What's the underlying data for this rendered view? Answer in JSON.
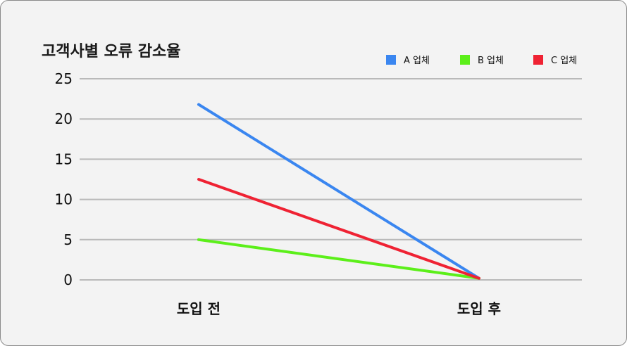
{
  "chart_data": {
    "type": "line",
    "title": "고객사별 오류 감소율",
    "categories": [
      "도입 전",
      "도입 후"
    ],
    "series": [
      {
        "name": "A 업체",
        "values": [
          21.8,
          0.2
        ],
        "color": "#3a86f0"
      },
      {
        "name": "B 업체",
        "values": [
          5.0,
          0.2
        ],
        "color": "#5cef1a"
      },
      {
        "name": "C 업체",
        "values": [
          12.5,
          0.2
        ],
        "color": "#ef2233"
      }
    ],
    "yticks": [
      0,
      5,
      10,
      15,
      20,
      25
    ],
    "ylim": [
      0,
      25
    ],
    "grid": true,
    "legend_position": "top-right"
  }
}
